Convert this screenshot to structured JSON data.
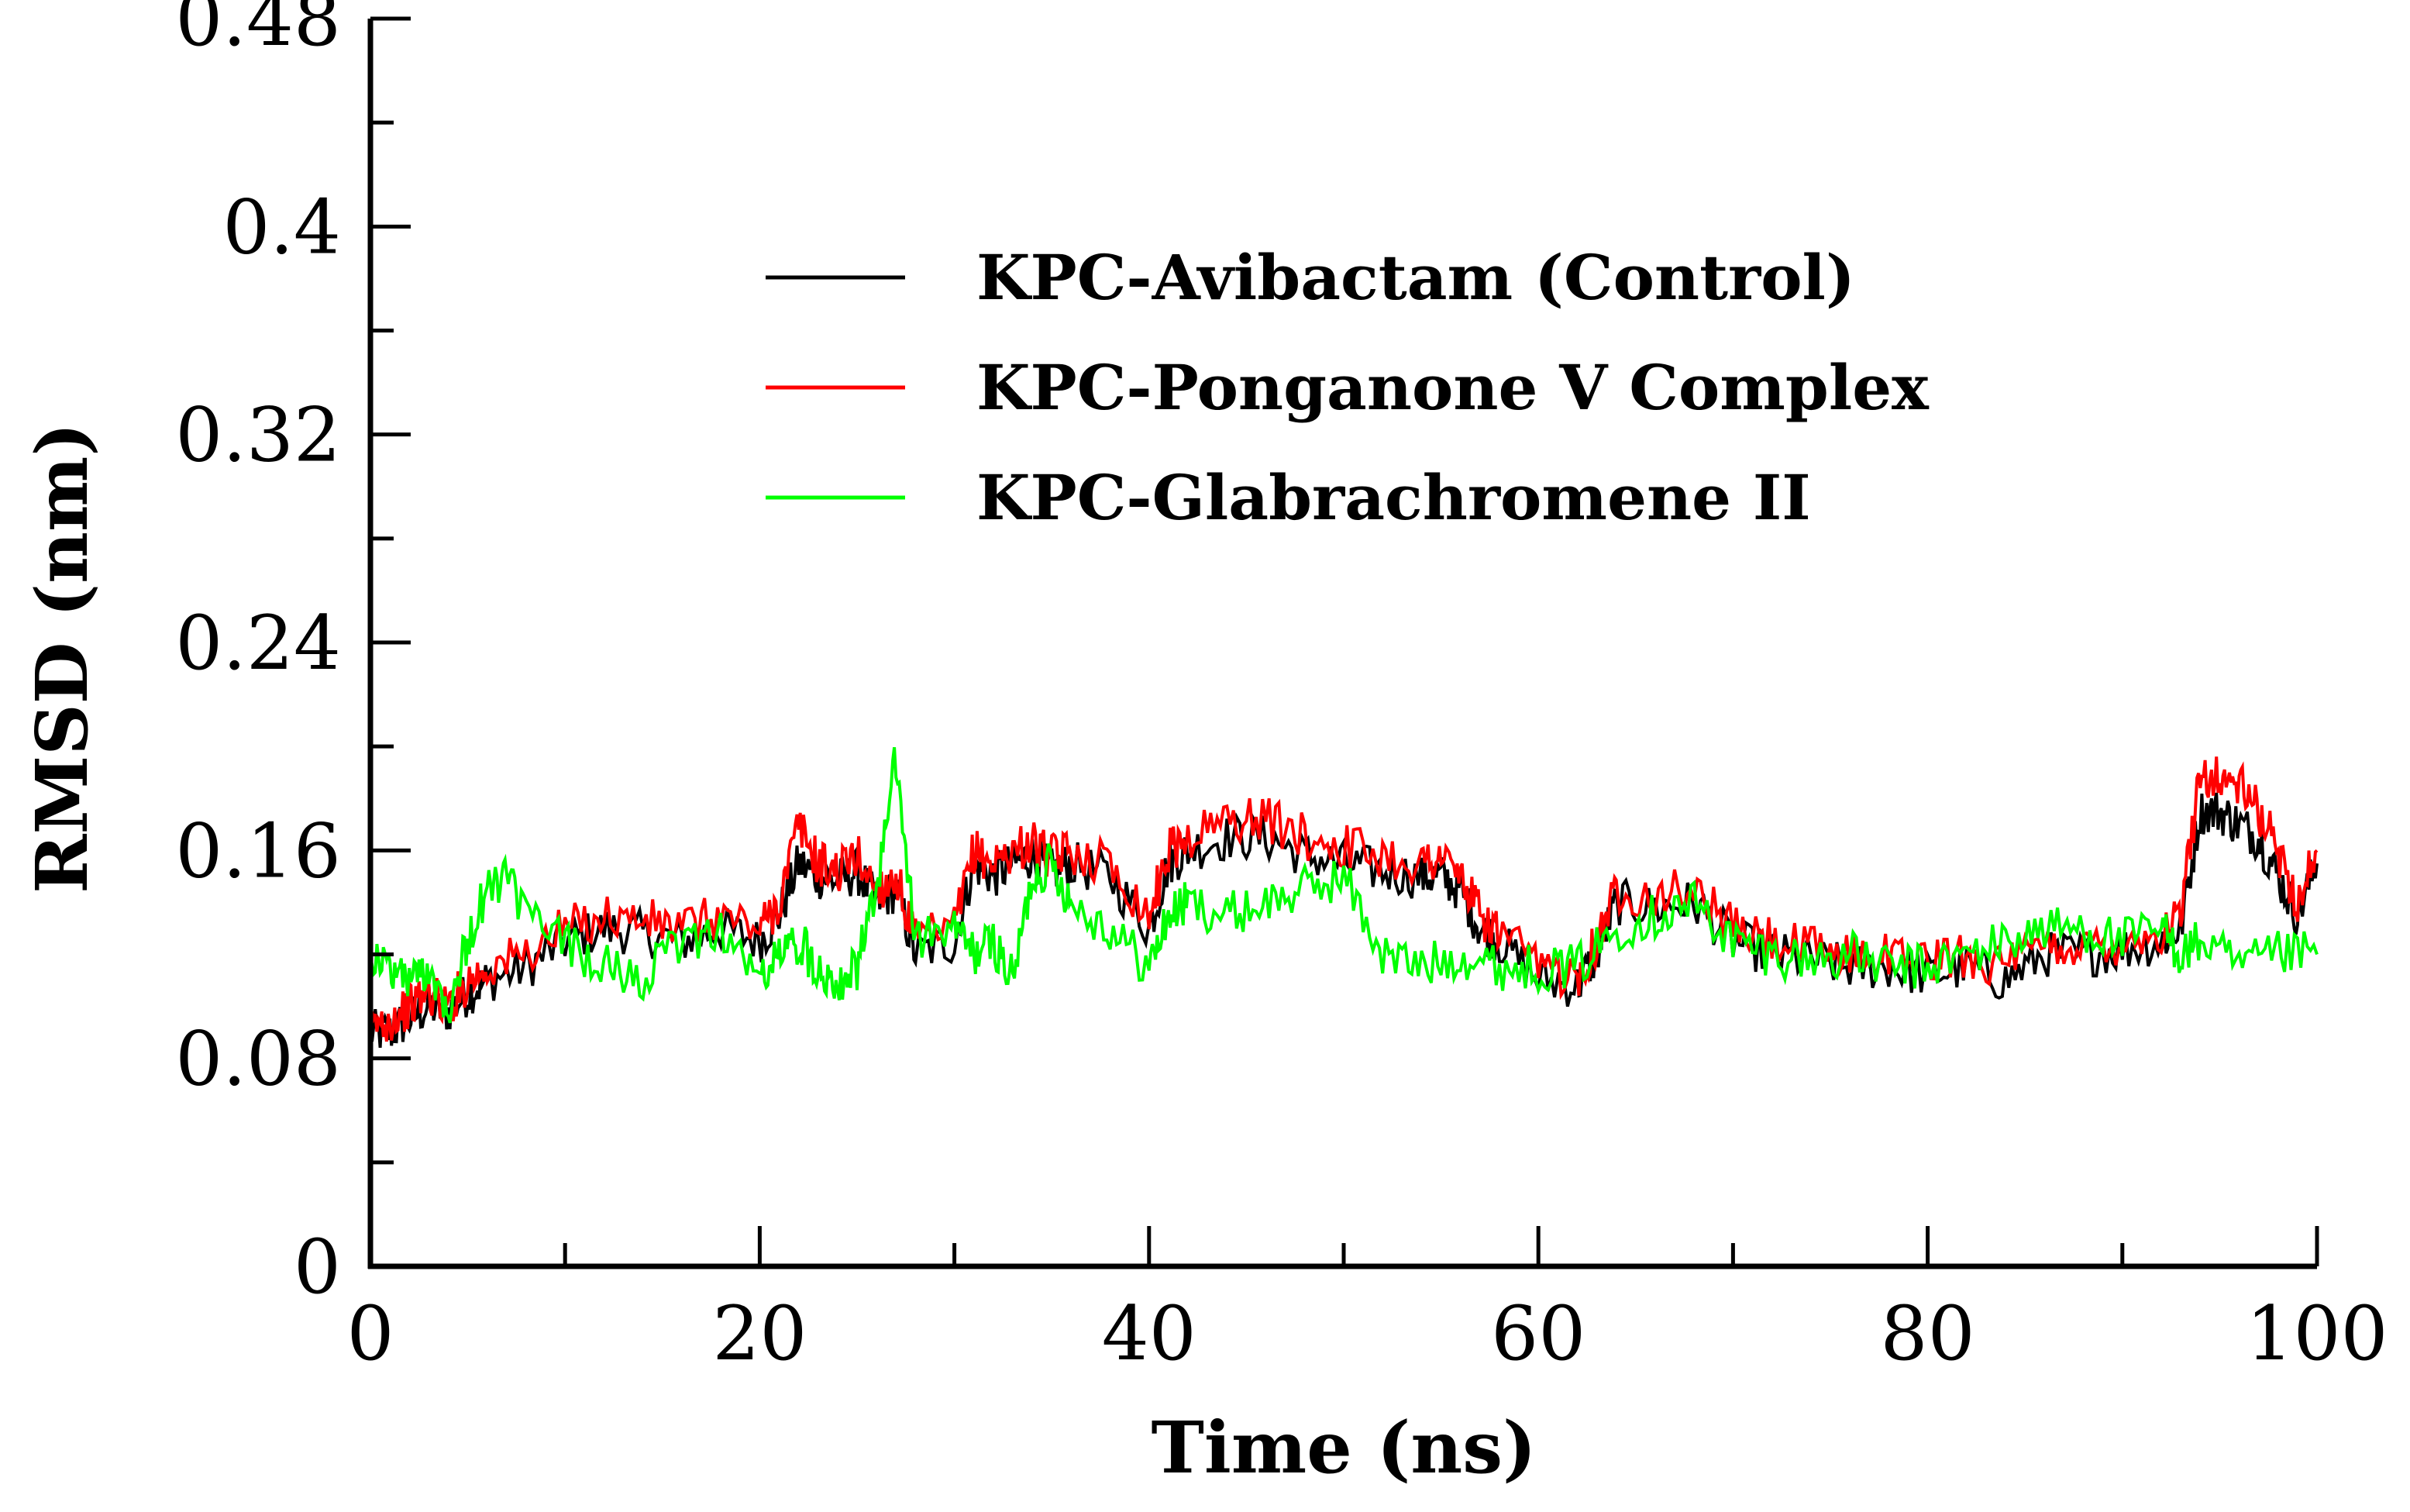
{
  "chart_data": {
    "type": "line",
    "title": "",
    "xlabel": "Time (ns)",
    "ylabel": "RMSD (nm)",
    "xlim": [
      0,
      100
    ],
    "ylim": [
      0,
      0.48
    ],
    "x_ticks": [
      "0",
      "20",
      "40",
      "60",
      "80",
      "100"
    ],
    "y_ticks": [
      "0",
      "0.08",
      "0.16",
      "0.24",
      "0.32",
      "0.4",
      "0.48"
    ],
    "legend_position": "top-right",
    "series": [
      {
        "name": "KPC-Avibactam (Control)",
        "color": "#000000",
        "x": [
          0,
          1,
          2,
          3,
          4,
          5,
          6,
          8,
          10,
          12,
          14,
          16,
          18,
          20,
          21,
          22,
          23,
          24,
          25,
          26,
          27,
          28,
          30,
          31,
          32,
          33,
          34,
          35,
          36,
          38,
          40,
          41,
          42,
          44,
          46,
          48,
          50,
          52,
          54,
          55,
          56,
          57,
          58,
          60,
          62,
          63,
          64,
          66,
          68,
          70,
          72,
          74,
          76,
          78,
          80,
          82,
          84,
          86,
          88,
          90,
          92,
          93,
          94,
          95,
          96,
          97,
          98,
          99,
          100
        ],
        "y": [
          0.09,
          0.09,
          0.095,
          0.1,
          0.098,
          0.105,
          0.11,
          0.115,
          0.125,
          0.13,
          0.128,
          0.125,
          0.13,
          0.125,
          0.135,
          0.155,
          0.15,
          0.148,
          0.152,
          0.14,
          0.145,
          0.12,
          0.125,
          0.155,
          0.15,
          0.155,
          0.158,
          0.152,
          0.155,
          0.15,
          0.13,
          0.155,
          0.16,
          0.165,
          0.165,
          0.158,
          0.155,
          0.152,
          0.15,
          0.15,
          0.145,
          0.13,
          0.125,
          0.11,
          0.108,
          0.12,
          0.14,
          0.138,
          0.14,
          0.125,
          0.12,
          0.118,
          0.115,
          0.115,
          0.112,
          0.115,
          0.11,
          0.12,
          0.12,
          0.122,
          0.125,
          0.13,
          0.175,
          0.175,
          0.17,
          0.165,
          0.15,
          0.135,
          0.155
        ]
      },
      {
        "name": "KPC-Ponganone V Complex",
        "color": "#ff0000",
        "x": [
          0,
          1,
          2,
          3,
          4,
          5,
          6,
          8,
          10,
          12,
          14,
          16,
          18,
          20,
          21,
          22,
          23,
          24,
          25,
          26,
          27,
          28,
          30,
          31,
          32,
          33,
          34,
          35,
          36,
          38,
          40,
          41,
          42,
          44,
          46,
          48,
          50,
          52,
          54,
          55,
          56,
          57,
          58,
          60,
          62,
          63,
          64,
          66,
          68,
          70,
          72,
          74,
          76,
          78,
          80,
          82,
          84,
          86,
          88,
          90,
          92,
          93,
          94,
          95,
          96,
          97,
          98,
          99,
          100
        ],
        "y": [
          0.092,
          0.095,
          0.1,
          0.105,
          0.1,
          0.11,
          0.115,
          0.12,
          0.13,
          0.135,
          0.133,
          0.13,
          0.135,
          0.13,
          0.14,
          0.17,
          0.155,
          0.152,
          0.158,
          0.145,
          0.15,
          0.125,
          0.13,
          0.16,
          0.155,
          0.16,
          0.163,
          0.157,
          0.16,
          0.155,
          0.135,
          0.16,
          0.165,
          0.172,
          0.172,
          0.165,
          0.162,
          0.158,
          0.155,
          0.158,
          0.15,
          0.135,
          0.128,
          0.115,
          0.112,
          0.125,
          0.145,
          0.143,
          0.145,
          0.13,
          0.125,
          0.122,
          0.12,
          0.12,
          0.117,
          0.12,
          0.115,
          0.123,
          0.123,
          0.125,
          0.128,
          0.135,
          0.19,
          0.188,
          0.185,
          0.175,
          0.16,
          0.14,
          0.16
        ]
      },
      {
        "name": "KPC-Glabrachromene II",
        "color": "#00ff00",
        "x": [
          0,
          1,
          2,
          3,
          4,
          5,
          6,
          7,
          8,
          10,
          12,
          14,
          16,
          18,
          20,
          21,
          22,
          23,
          24,
          25,
          26,
          27,
          28,
          30,
          31,
          32,
          33,
          34,
          35,
          36,
          38,
          40,
          41,
          42,
          44,
          46,
          48,
          50,
          52,
          54,
          56,
          58,
          60,
          62,
          64,
          66,
          68,
          70,
          72,
          74,
          76,
          78,
          80,
          82,
          84,
          86,
          88,
          90,
          92,
          93,
          94,
          96,
          98,
          100
        ],
        "y": [
          0.12,
          0.115,
          0.11,
          0.115,
          0.1,
          0.125,
          0.145,
          0.15,
          0.135,
          0.125,
          0.115,
          0.11,
          0.125,
          0.13,
          0.11,
          0.12,
          0.125,
          0.115,
          0.11,
          0.115,
          0.145,
          0.195,
          0.125,
          0.13,
          0.12,
          0.125,
          0.11,
          0.15,
          0.155,
          0.14,
          0.13,
          0.115,
          0.135,
          0.14,
          0.135,
          0.14,
          0.145,
          0.15,
          0.12,
          0.115,
          0.12,
          0.115,
          0.115,
          0.115,
          0.13,
          0.135,
          0.14,
          0.125,
          0.12,
          0.118,
          0.12,
          0.115,
          0.115,
          0.12,
          0.125,
          0.13,
          0.13,
          0.125,
          0.13,
          0.12,
          0.125,
          0.115,
          0.12,
          0.12
        ]
      }
    ]
  }
}
